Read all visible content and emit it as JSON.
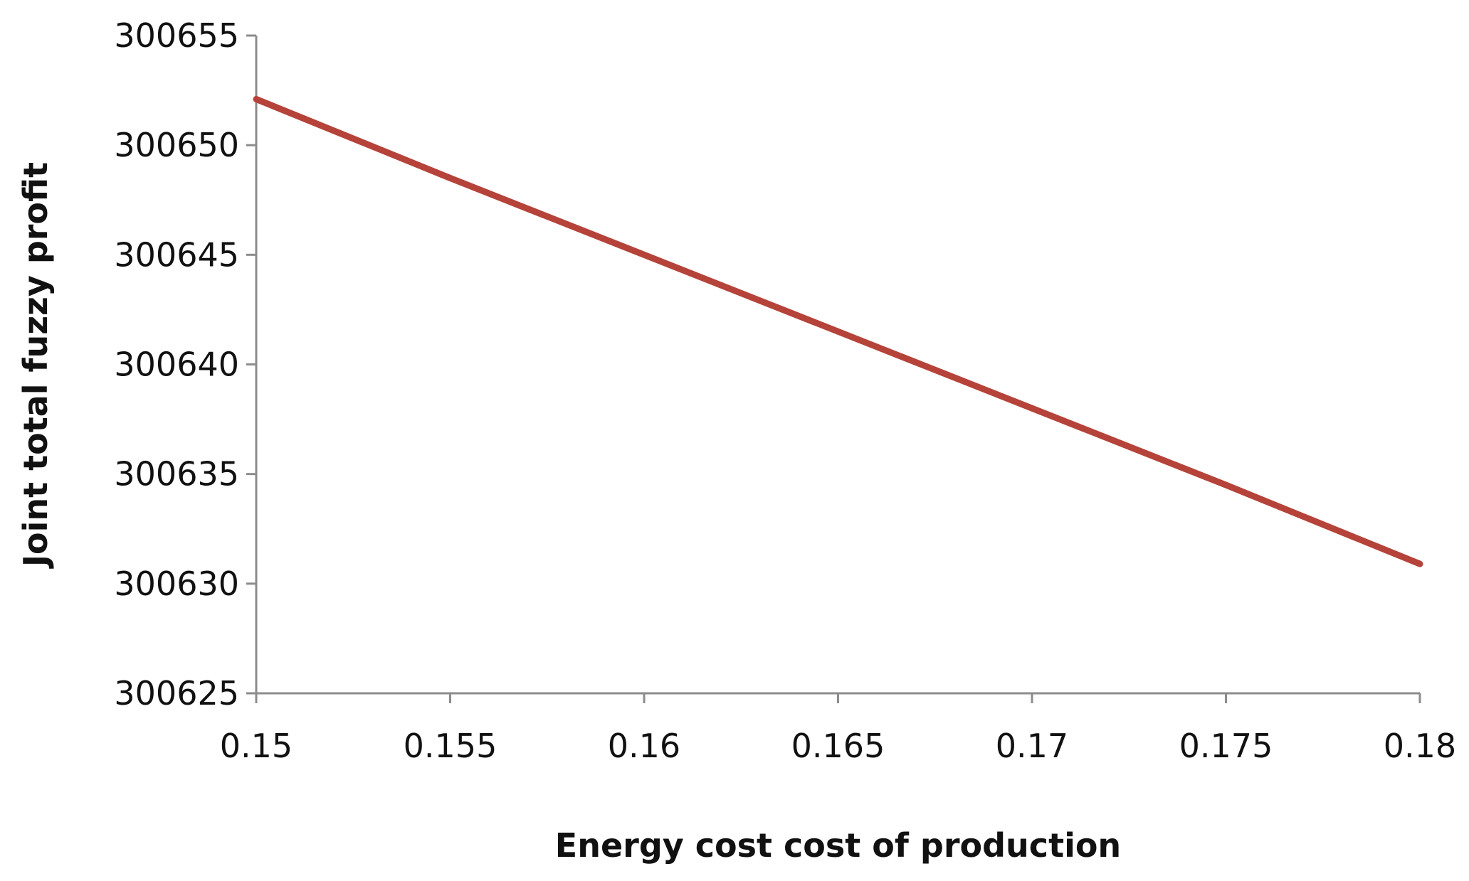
{
  "chart_data": {
    "type": "line",
    "title": "",
    "xlabel": "Energy cost  cost of production",
    "ylabel": "Joint total fuzzy profit",
    "x": [
      0.15,
      0.155,
      0.16,
      0.165,
      0.17,
      0.175,
      0.18
    ],
    "x_tick_labels": [
      "0.15",
      "0.155",
      "0.16",
      "0.165",
      "0.17",
      "0.175",
      "0.18"
    ],
    "y_tick_labels": [
      "300625",
      "300630",
      "300635",
      "300640",
      "300645",
      "300650",
      "300655"
    ],
    "y_ticks": [
      300625,
      300630,
      300635,
      300640,
      300645,
      300650,
      300655
    ],
    "xlim": [
      0.15,
      0.18
    ],
    "ylim": [
      300625,
      300655
    ],
    "grid": false,
    "legend": "none",
    "series": [
      {
        "name": "Joint total fuzzy profit",
        "color": "#b5433a",
        "values": [
          300652.1,
          300648.5,
          300645.0,
          300641.5,
          300638.0,
          300634.5,
          300630.9
        ]
      }
    ]
  }
}
